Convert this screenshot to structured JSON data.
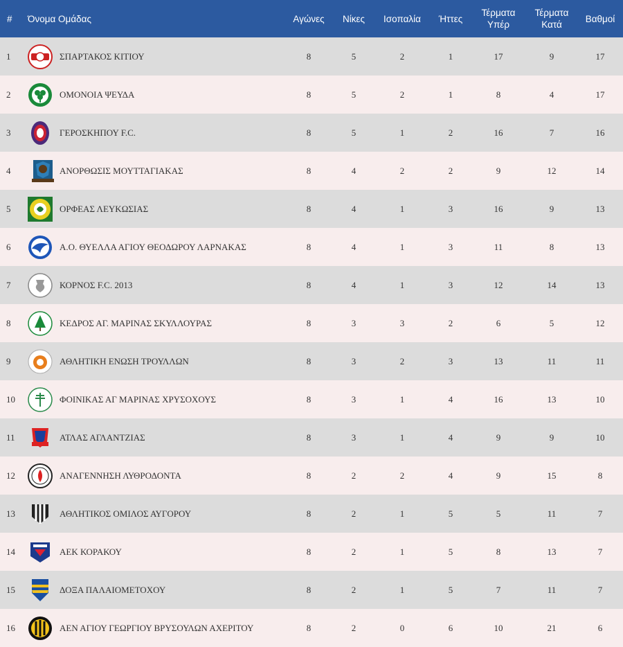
{
  "headers": {
    "pos": "#",
    "team": "Όνομα Ομάδας",
    "played": "Αγώνες",
    "wins": "Νίκες",
    "draws": "Ισοπαλία",
    "losses": "Ήττες",
    "gf_line1": "Τέρματα",
    "gf_line2": "Υπέρ",
    "ga_line1": "Τέρματα",
    "ga_line2": "Κατά",
    "points": "Βαθμοί"
  },
  "rows": [
    {
      "pos": "1",
      "team": "ΣΠΑΡΤΑΚΟΣ ΚΙΤΙΟΥ",
      "played": "8",
      "wins": "5",
      "draws": "2",
      "losses": "1",
      "gf": "17",
      "ga": "9",
      "points": "17",
      "logo": "spartakos-logo"
    },
    {
      "pos": "2",
      "team": "ΟΜΟΝΟΙΑ ΨΕΥΔΑ",
      "played": "8",
      "wins": "5",
      "draws": "2",
      "losses": "1",
      "gf": "8",
      "ga": "4",
      "points": "17",
      "logo": "omonoia-logo"
    },
    {
      "pos": "3",
      "team": "ΓΕΡΟΣΚΗΠΟΥ F.C.",
      "played": "8",
      "wins": "5",
      "draws": "1",
      "losses": "2",
      "gf": "16",
      "ga": "7",
      "points": "16",
      "logo": "geroskipou-logo"
    },
    {
      "pos": "4",
      "team": "ΑΝΟΡΘΩΣΙΣ ΜΟΥΤΤΑΓΙΑΚΑΣ",
      "played": "8",
      "wins": "4",
      "draws": "2",
      "losses": "2",
      "gf": "9",
      "ga": "12",
      "points": "14",
      "logo": "anorthosis-logo"
    },
    {
      "pos": "5",
      "team": "ΟΡΦΕΑΣ ΛΕΥΚΩΣΙΑΣ",
      "played": "8",
      "wins": "4",
      "draws": "1",
      "losses": "3",
      "gf": "16",
      "ga": "9",
      "points": "13",
      "logo": "orfeas-logo"
    },
    {
      "pos": "6",
      "team": "Α.Ο. ΘΥΕΛΛΑ ΑΓΙΟΥ ΘΕΟΔΩΡΟΥ ΛΑΡΝΑΚΑΣ",
      "played": "8",
      "wins": "4",
      "draws": "1",
      "losses": "3",
      "gf": "11",
      "ga": "8",
      "points": "13",
      "logo": "thyella-logo"
    },
    {
      "pos": "7",
      "team": "ΚΟΡΝΟΣ F.C. 2013",
      "played": "8",
      "wins": "4",
      "draws": "1",
      "losses": "3",
      "gf": "12",
      "ga": "14",
      "points": "13",
      "logo": "kornos-logo"
    },
    {
      "pos": "8",
      "team": "ΚΕΔΡΟΣ ΑΓ. ΜΑΡΙΝΑΣ ΣΚΥΛΛΟΥΡΑΣ",
      "played": "8",
      "wins": "3",
      "draws": "3",
      "losses": "2",
      "gf": "6",
      "ga": "5",
      "points": "12",
      "logo": "kedros-logo"
    },
    {
      "pos": "9",
      "team": "ΑΘΛΗΤΙΚΗ ΕΝΩΣΗ ΤΡΟΥΛΛΩΝ",
      "played": "8",
      "wins": "3",
      "draws": "2",
      "losses": "3",
      "gf": "13",
      "ga": "11",
      "points": "11",
      "logo": "troulloi-logo"
    },
    {
      "pos": "10",
      "team": "ΦΟΙΝΙΚΑΣ ΑΓ ΜΑΡΙΝΑΣ ΧΡΥΣΟΧΟΥΣ",
      "played": "8",
      "wins": "3",
      "draws": "1",
      "losses": "4",
      "gf": "16",
      "ga": "13",
      "points": "10",
      "logo": "foinikas-logo"
    },
    {
      "pos": "11",
      "team": "ΑΤΛΑΣ ΑΓΛΑΝΤΖΙΑΣ",
      "played": "8",
      "wins": "3",
      "draws": "1",
      "losses": "4",
      "gf": "9",
      "ga": "9",
      "points": "10",
      "logo": "atlas-logo"
    },
    {
      "pos": "12",
      "team": "ΑΝΑΓΕΝΝΗΣΗ ΛΥΘΡΟΔΟΝΤΑ",
      "played": "8",
      "wins": "2",
      "draws": "2",
      "losses": "4",
      "gf": "9",
      "ga": "15",
      "points": "8",
      "logo": "anagennisi-logo"
    },
    {
      "pos": "13",
      "team": "ΑΘΛΗΤΙΚΟΣ ΟΜΙΛΟΣ ΑΥΓΟΡΟΥ",
      "played": "8",
      "wins": "2",
      "draws": "1",
      "losses": "5",
      "gf": "5",
      "ga": "11",
      "points": "7",
      "logo": "avgorou-logo"
    },
    {
      "pos": "14",
      "team": "ΑΕΚ ΚΟΡΑΚΟΥ",
      "played": "8",
      "wins": "2",
      "draws": "1",
      "losses": "5",
      "gf": "8",
      "ga": "13",
      "points": "7",
      "logo": "aek-korakou-logo"
    },
    {
      "pos": "15",
      "team": "ΔΟΞΑ ΠΑΛΑΙΟΜΕΤΟΧΟΥ",
      "played": "8",
      "wins": "2",
      "draws": "1",
      "losses": "5",
      "gf": "7",
      "ga": "11",
      "points": "7",
      "logo": "doxa-logo"
    },
    {
      "pos": "16",
      "team": "ΑΕΝ ΑΓΙΟΥ ΓΕΩΡΓΙΟΥ ΒΡΥΣΟΥΛΩΝ ΑΧΕΡΙΤΟΥ",
      "played": "8",
      "wins": "2",
      "draws": "0",
      "losses": "6",
      "gf": "10",
      "ga": "21",
      "points": "6",
      "logo": "aen-logo"
    }
  ],
  "colors": {
    "header_bg": "#2c5aa0",
    "header_text": "#ffffff",
    "row_odd": "#dcdcdc",
    "row_even": "#f8eded",
    "body_text": "#333333"
  }
}
